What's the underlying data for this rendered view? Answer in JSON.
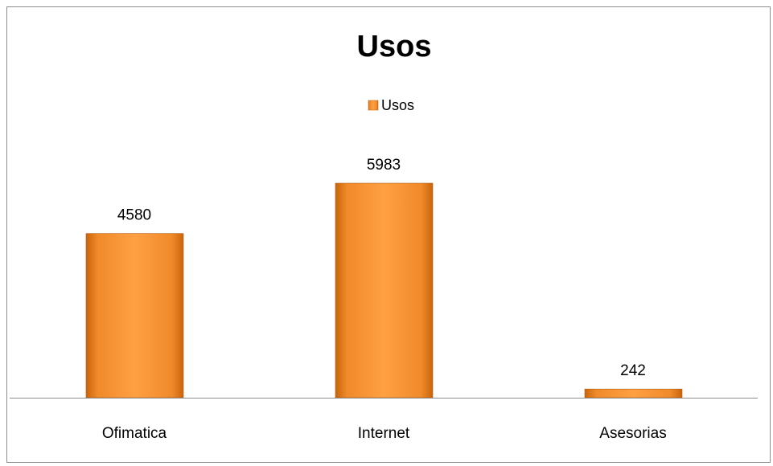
{
  "chart_data": {
    "type": "bar",
    "title": "Usos",
    "categories": [
      "Ofimatica",
      "Internet",
      "Asesorias"
    ],
    "series": [
      {
        "name": "Usos",
        "color": "#f79646",
        "values": [
          4580,
          5983,
          242
        ]
      }
    ]
  }
}
